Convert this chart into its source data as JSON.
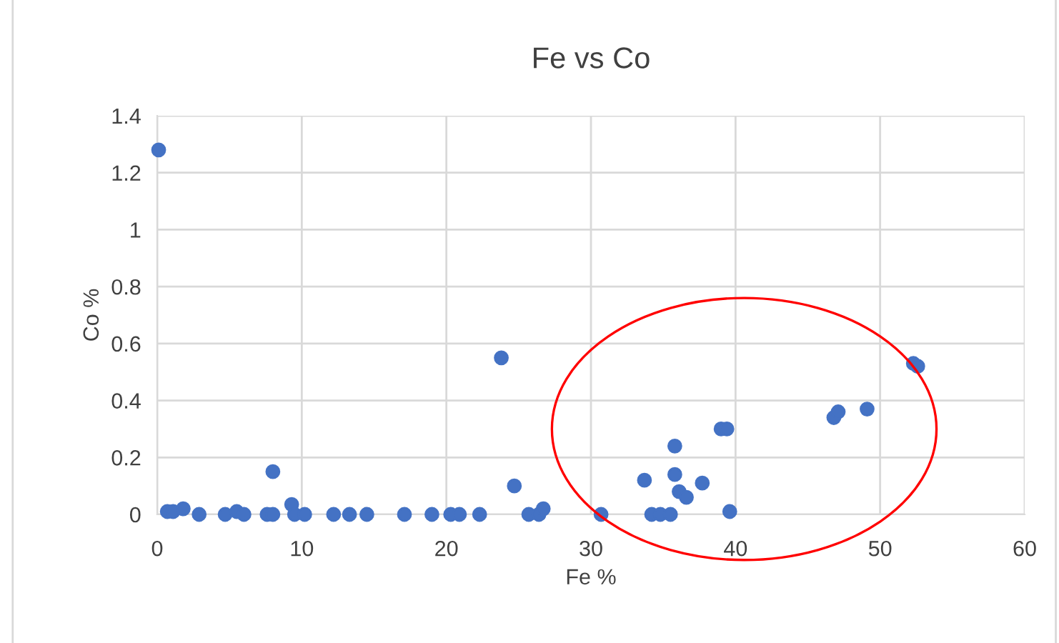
{
  "chart_data": {
    "type": "scatter",
    "title": "Fe vs Co",
    "xlabel": "Fe %",
    "ylabel": "Co %",
    "x": [
      0.1,
      0.7,
      1.1,
      1.8,
      2.9,
      4.7,
      5.5,
      6.0,
      7.6,
      8.0,
      8.0,
      9.3,
      9.5,
      10.2,
      12.2,
      13.3,
      14.5,
      17.1,
      19.0,
      20.3,
      20.9,
      22.3,
      23.8,
      24.7,
      25.7,
      26.4,
      26.7,
      30.7,
      33.7,
      34.2,
      34.8,
      35.5,
      35.8,
      35.8,
      36.1,
      36.6,
      37.7,
      39.0,
      39.4,
      39.6,
      46.8,
      47.1,
      49.1,
      52.3,
      52.6
    ],
    "series": [
      {
        "color": "#4472c4",
        "values": [
          1.28,
          0.01,
          0.01,
          0.02,
          0,
          0,
          0.01,
          0,
          0,
          0,
          0.15,
          0.035,
          0,
          0,
          0,
          0,
          0,
          0,
          0,
          0,
          0,
          0,
          0.55,
          0.1,
          0,
          0,
          0.02,
          0,
          0.12,
          0,
          0,
          0,
          0.24,
          0.14,
          0.08,
          0.06,
          0.11,
          0.3,
          0.3,
          0.01,
          0.34,
          0.36,
          0.37,
          0.53,
          0.52
        ]
      }
    ],
    "xlim": [
      0,
      60
    ],
    "ylim": [
      0,
      1.4
    ],
    "xticks": [
      0,
      10,
      20,
      30,
      40,
      50,
      60
    ],
    "yticks": [
      0,
      0.2,
      0.4,
      0.6,
      0.8,
      1,
      1.2,
      1.4
    ],
    "grid": true,
    "marker": "circle",
    "legend": false
  }
}
